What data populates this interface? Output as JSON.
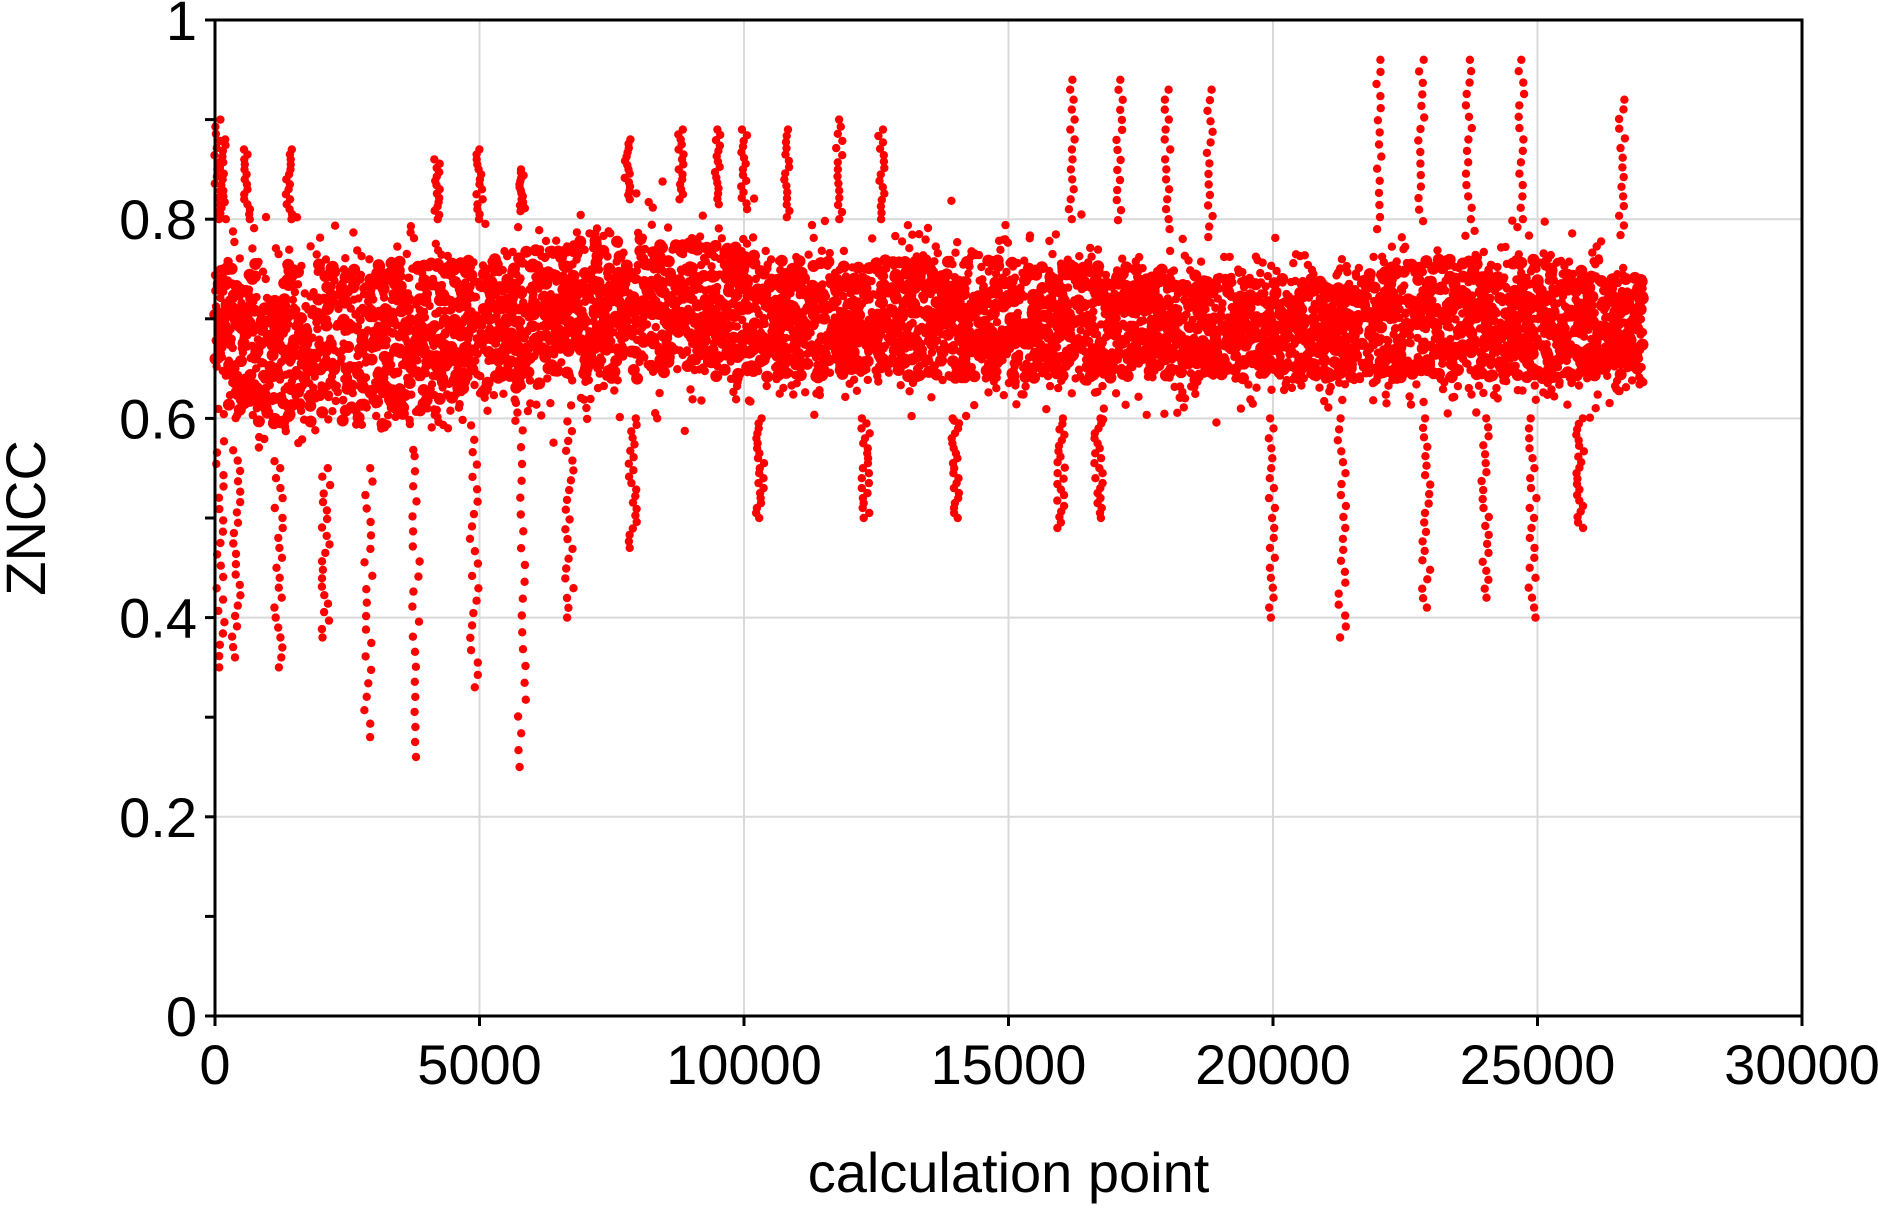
{
  "chart_data": {
    "type": "scatter",
    "title": "",
    "xlabel": "calculation point",
    "ylabel": "ZNCC",
    "xlim": [
      0,
      30000
    ],
    "ylim": [
      0,
      1
    ],
    "x_ticks": [
      0,
      5000,
      10000,
      15000,
      20000,
      25000,
      30000
    ],
    "x_tick_labels": [
      "0",
      "5000",
      "10000",
      "15000",
      "20000",
      "25000",
      "30000"
    ],
    "y_ticks": [
      0,
      0.2,
      0.4,
      0.6,
      0.8,
      1
    ],
    "y_tick_labels": [
      "0",
      "0.2",
      "0.4",
      "0.6",
      "0.8",
      "1"
    ],
    "grid": true,
    "legend": "none",
    "marker_color": "#ff0000",
    "point_count": 27000,
    "x_range": [
      0,
      27000
    ],
    "band": [
      {
        "x": 0,
        "low": 0.58,
        "high": 0.8
      },
      {
        "x": 1000,
        "low": 0.55,
        "high": 0.8
      },
      {
        "x": 3000,
        "low": 0.55,
        "high": 0.8
      },
      {
        "x": 5000,
        "low": 0.58,
        "high": 0.8
      },
      {
        "x": 7000,
        "low": 0.6,
        "high": 0.82
      },
      {
        "x": 9000,
        "low": 0.6,
        "high": 0.82
      },
      {
        "x": 11000,
        "low": 0.6,
        "high": 0.8
      },
      {
        "x": 13000,
        "low": 0.6,
        "high": 0.8
      },
      {
        "x": 15000,
        "low": 0.6,
        "high": 0.8
      },
      {
        "x": 17000,
        "low": 0.6,
        "high": 0.8
      },
      {
        "x": 19000,
        "low": 0.6,
        "high": 0.78
      },
      {
        "x": 21000,
        "low": 0.6,
        "high": 0.78
      },
      {
        "x": 23000,
        "low": 0.6,
        "high": 0.8
      },
      {
        "x": 25000,
        "low": 0.6,
        "high": 0.8
      },
      {
        "x": 27000,
        "low": 0.6,
        "high": 0.78
      }
    ],
    "spikes": [
      {
        "x": 50,
        "y": 0.9
      },
      {
        "x": 150,
        "y": 0.88
      },
      {
        "x": 600,
        "y": 0.87
      },
      {
        "x": 1400,
        "y": 0.87
      },
      {
        "x": 4200,
        "y": 0.86
      },
      {
        "x": 5000,
        "y": 0.87
      },
      {
        "x": 5800,
        "y": 0.85
      },
      {
        "x": 7800,
        "y": 0.88
      },
      {
        "x": 8800,
        "y": 0.89
      },
      {
        "x": 9500,
        "y": 0.89
      },
      {
        "x": 10000,
        "y": 0.89
      },
      {
        "x": 10800,
        "y": 0.89
      },
      {
        "x": 11800,
        "y": 0.9
      },
      {
        "x": 12600,
        "y": 0.89
      },
      {
        "x": 16200,
        "y": 0.94
      },
      {
        "x": 17100,
        "y": 0.94
      },
      {
        "x": 18000,
        "y": 0.93
      },
      {
        "x": 18800,
        "y": 0.93
      },
      {
        "x": 22000,
        "y": 0.96
      },
      {
        "x": 22800,
        "y": 0.96
      },
      {
        "x": 23700,
        "y": 0.96
      },
      {
        "x": 24700,
        "y": 0.96
      },
      {
        "x": 26600,
        "y": 0.92
      }
    ],
    "dips": [
      {
        "x": 100,
        "y": 0.35
      },
      {
        "x": 400,
        "y": 0.36
      },
      {
        "x": 1200,
        "y": 0.35
      },
      {
        "x": 2100,
        "y": 0.38
      },
      {
        "x": 2900,
        "y": 0.28
      },
      {
        "x": 3800,
        "y": 0.26
      },
      {
        "x": 4900,
        "y": 0.33
      },
      {
        "x": 5800,
        "y": 0.25
      },
      {
        "x": 6700,
        "y": 0.4
      },
      {
        "x": 7900,
        "y": 0.47
      },
      {
        "x": 10300,
        "y": 0.5
      },
      {
        "x": 12300,
        "y": 0.5
      },
      {
        "x": 14000,
        "y": 0.5
      },
      {
        "x": 16000,
        "y": 0.49
      },
      {
        "x": 16700,
        "y": 0.5
      },
      {
        "x": 20000,
        "y": 0.4
      },
      {
        "x": 21300,
        "y": 0.38
      },
      {
        "x": 22900,
        "y": 0.41
      },
      {
        "x": 24000,
        "y": 0.42
      },
      {
        "x": 24900,
        "y": 0.4
      },
      {
        "x": 25800,
        "y": 0.49
      }
    ]
  }
}
